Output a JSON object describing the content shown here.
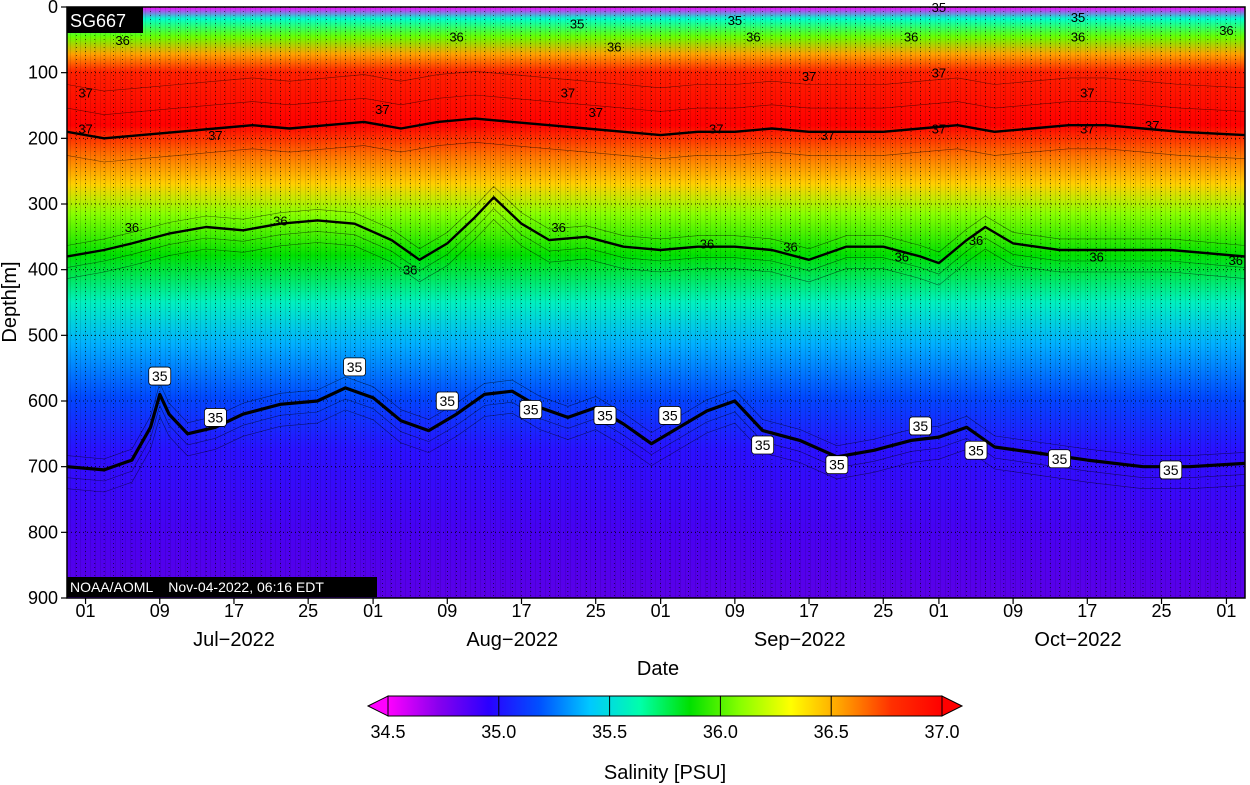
{
  "chart_data": {
    "type": "heatmap",
    "platform_label": "SG667",
    "credit_label": "NOAA/AOML    Nov-04-2022, 06:16 EDT",
    "ylabel": "Depth[m]",
    "xlabel": "Date",
    "colorbar_label": "Salinity [PSU]",
    "yticks": [
      "0",
      "100",
      "200",
      "300",
      "400",
      "500",
      "600",
      "700",
      "800",
      "900"
    ],
    "ylim": [
      0,
      900
    ],
    "xlim": [
      "2022-06-29",
      "2022-11-03"
    ],
    "xticks": [
      {
        "date": "2022-07-01",
        "label": "01"
      },
      {
        "date": "2022-07-09",
        "label": "09"
      },
      {
        "date": "2022-07-17",
        "label": "17"
      },
      {
        "date": "2022-07-25",
        "label": "25"
      },
      {
        "date": "2022-08-01",
        "label": "01"
      },
      {
        "date": "2022-08-09",
        "label": "09"
      },
      {
        "date": "2022-08-17",
        "label": "17"
      },
      {
        "date": "2022-08-25",
        "label": "25"
      },
      {
        "date": "2022-09-01",
        "label": "01"
      },
      {
        "date": "2022-09-09",
        "label": "09"
      },
      {
        "date": "2022-09-17",
        "label": "17"
      },
      {
        "date": "2022-09-25",
        "label": "25"
      },
      {
        "date": "2022-10-01",
        "label": "01"
      },
      {
        "date": "2022-10-09",
        "label": "09"
      },
      {
        "date": "2022-10-17",
        "label": "17"
      },
      {
        "date": "2022-10-25",
        "label": "25"
      },
      {
        "date": "2022-11-01",
        "label": "01"
      }
    ],
    "months": [
      {
        "date": "2022-07-17",
        "label": "Jul−2022"
      },
      {
        "date": "2022-08-16",
        "label": "Aug−2022"
      },
      {
        "date": "2022-09-16",
        "label": "Sep−2022"
      },
      {
        "date": "2022-10-16",
        "label": "Oct−2022"
      }
    ],
    "colorbar": {
      "range": [
        34.5,
        37.0
      ],
      "ticks": [
        "34.5",
        "35.0",
        "35.5",
        "36.0",
        "36.5",
        "37.0"
      ],
      "colors": [
        "#ff00ff",
        "#8800ee",
        "#2a00ff",
        "#0050ff",
        "#00c8ff",
        "#00ffaa",
        "#00e000",
        "#88ff00",
        "#ffff00",
        "#ffa000",
        "#ff3000",
        "#ff0000"
      ]
    },
    "contours": [
      {
        "level": 35,
        "label": "35",
        "points": [
          [
            "2022-06-29",
            700
          ],
          [
            "2022-07-03",
            705
          ],
          [
            "2022-07-06",
            690
          ],
          [
            "2022-07-08",
            640
          ],
          [
            "2022-07-09",
            590
          ],
          [
            "2022-07-10",
            620
          ],
          [
            "2022-07-12",
            650
          ],
          [
            "2022-07-15",
            640
          ],
          [
            "2022-07-18",
            620
          ],
          [
            "2022-07-22",
            605
          ],
          [
            "2022-07-26",
            600
          ],
          [
            "2022-07-29",
            580
          ],
          [
            "2022-08-01",
            595
          ],
          [
            "2022-08-04",
            630
          ],
          [
            "2022-08-07",
            645
          ],
          [
            "2022-08-10",
            620
          ],
          [
            "2022-08-13",
            590
          ],
          [
            "2022-08-16",
            585
          ],
          [
            "2022-08-19",
            610
          ],
          [
            "2022-08-22",
            625
          ],
          [
            "2022-08-25",
            610
          ],
          [
            "2022-08-28",
            635
          ],
          [
            "2022-08-31",
            665
          ],
          [
            "2022-09-03",
            640
          ],
          [
            "2022-09-06",
            615
          ],
          [
            "2022-09-09",
            600
          ],
          [
            "2022-09-12",
            645
          ],
          [
            "2022-09-16",
            660
          ],
          [
            "2022-09-20",
            685
          ],
          [
            "2022-09-24",
            675
          ],
          [
            "2022-09-28",
            660
          ],
          [
            "2022-10-01",
            655
          ],
          [
            "2022-10-04",
            640
          ],
          [
            "2022-10-07",
            670
          ],
          [
            "2022-10-12",
            680
          ],
          [
            "2022-10-17",
            690
          ],
          [
            "2022-10-23",
            700
          ],
          [
            "2022-10-28",
            700
          ],
          [
            "2022-11-03",
            695
          ]
        ]
      },
      {
        "level": 36,
        "label": "36",
        "points": [
          [
            "2022-06-29",
            380
          ],
          [
            "2022-07-03",
            370
          ],
          [
            "2022-07-06",
            360
          ],
          [
            "2022-07-10",
            345
          ],
          [
            "2022-07-14",
            335
          ],
          [
            "2022-07-18",
            340
          ],
          [
            "2022-07-22",
            330
          ],
          [
            "2022-07-26",
            325
          ],
          [
            "2022-07-30",
            330
          ],
          [
            "2022-08-03",
            355
          ],
          [
            "2022-08-06",
            385
          ],
          [
            "2022-08-09",
            360
          ],
          [
            "2022-08-12",
            320
          ],
          [
            "2022-08-14",
            290
          ],
          [
            "2022-08-17",
            330
          ],
          [
            "2022-08-20",
            355
          ],
          [
            "2022-08-24",
            350
          ],
          [
            "2022-08-28",
            365
          ],
          [
            "2022-09-01",
            370
          ],
          [
            "2022-09-05",
            365
          ],
          [
            "2022-09-09",
            365
          ],
          [
            "2022-09-13",
            370
          ],
          [
            "2022-09-17",
            385
          ],
          [
            "2022-09-21",
            365
          ],
          [
            "2022-09-25",
            365
          ],
          [
            "2022-09-29",
            380
          ],
          [
            "2022-10-01",
            390
          ],
          [
            "2022-10-04",
            355
          ],
          [
            "2022-10-06",
            335
          ],
          [
            "2022-10-09",
            360
          ],
          [
            "2022-10-14",
            370
          ],
          [
            "2022-10-20",
            370
          ],
          [
            "2022-10-26",
            370
          ],
          [
            "2022-11-03",
            380
          ]
        ]
      },
      {
        "level": 37,
        "label": "37",
        "points": [
          [
            "2022-06-29",
            190
          ],
          [
            "2022-07-03",
            200
          ],
          [
            "2022-07-07",
            195
          ],
          [
            "2022-07-11",
            190
          ],
          [
            "2022-07-15",
            185
          ],
          [
            "2022-07-19",
            180
          ],
          [
            "2022-07-23",
            185
          ],
          [
            "2022-07-27",
            180
          ],
          [
            "2022-07-31",
            175
          ],
          [
            "2022-08-04",
            185
          ],
          [
            "2022-08-08",
            175
          ],
          [
            "2022-08-12",
            170
          ],
          [
            "2022-08-16",
            175
          ],
          [
            "2022-08-20",
            180
          ],
          [
            "2022-08-24",
            185
          ],
          [
            "2022-08-28",
            190
          ],
          [
            "2022-09-01",
            195
          ],
          [
            "2022-09-05",
            190
          ],
          [
            "2022-09-09",
            190
          ],
          [
            "2022-09-13",
            185
          ],
          [
            "2022-09-17",
            190
          ],
          [
            "2022-09-21",
            190
          ],
          [
            "2022-09-25",
            190
          ],
          [
            "2022-09-29",
            185
          ],
          [
            "2022-10-03",
            180
          ],
          [
            "2022-10-07",
            190
          ],
          [
            "2022-10-11",
            185
          ],
          [
            "2022-10-15",
            180
          ],
          [
            "2022-10-19",
            180
          ],
          [
            "2022-10-23",
            185
          ],
          [
            "2022-10-27",
            190
          ],
          [
            "2022-11-03",
            195
          ]
        ]
      }
    ],
    "contour_labels": [
      {
        "level": "36",
        "date": "2022-07-05",
        "depth": 50
      },
      {
        "level": "36",
        "date": "2022-08-10",
        "depth": 45
      },
      {
        "level": "36",
        "date": "2022-08-27",
        "depth": 60
      },
      {
        "level": "36",
        "date": "2022-09-11",
        "depth": 45
      },
      {
        "level": "36",
        "date": "2022-09-28",
        "depth": 45
      },
      {
        "level": "36",
        "date": "2022-10-16",
        "depth": 45
      },
      {
        "level": "36",
        "date": "2022-11-01",
        "depth": 35
      },
      {
        "level": "37",
        "date": "2022-07-01",
        "depth": 130
      },
      {
        "level": "37",
        "date": "2022-07-01",
        "depth": 185
      },
      {
        "level": "37",
        "date": "2022-07-15",
        "depth": 195
      },
      {
        "level": "37",
        "date": "2022-08-02",
        "depth": 155
      },
      {
        "level": "37",
        "date": "2022-08-22",
        "depth": 130
      },
      {
        "level": "37",
        "date": "2022-08-25",
        "depth": 160
      },
      {
        "level": "37",
        "date": "2022-09-07",
        "depth": 185
      },
      {
        "level": "37",
        "date": "2022-09-17",
        "depth": 105
      },
      {
        "level": "37",
        "date": "2022-09-19",
        "depth": 195
      },
      {
        "level": "37",
        "date": "2022-10-01",
        "depth": 100
      },
      {
        "level": "37",
        "date": "2022-10-01",
        "depth": 185
      },
      {
        "level": "37",
        "date": "2022-10-17",
        "depth": 185
      },
      {
        "level": "37",
        "date": "2022-10-17",
        "depth": 130
      },
      {
        "level": "37",
        "date": "2022-10-24",
        "depth": 180
      },
      {
        "level": "36",
        "date": "2022-07-06",
        "depth": 335
      },
      {
        "level": "36",
        "date": "2022-07-22",
        "depth": 325
      },
      {
        "level": "36",
        "date": "2022-08-05",
        "depth": 400
      },
      {
        "level": "36",
        "date": "2022-08-21",
        "depth": 335
      },
      {
        "level": "36",
        "date": "2022-09-06",
        "depth": 360
      },
      {
        "level": "36",
        "date": "2022-09-15",
        "depth": 365
      },
      {
        "level": "36",
        "date": "2022-09-27",
        "depth": 380
      },
      {
        "level": "36",
        "date": "2022-10-05",
        "depth": 355
      },
      {
        "level": "36",
        "date": "2022-10-18",
        "depth": 380
      },
      {
        "level": "36",
        "date": "2022-11-02",
        "depth": 385
      },
      {
        "level": "35",
        "date": "2022-08-23",
        "depth": 25
      },
      {
        "level": "35",
        "date": "2022-09-09",
        "depth": 20
      },
      {
        "level": "35",
        "date": "2022-10-01",
        "depth": 0
      },
      {
        "level": "35",
        "date": "2022-10-16",
        "depth": 15
      }
    ],
    "boxed_labels": [
      {
        "level": "35",
        "date": "2022-07-09",
        "depth": 562
      },
      {
        "level": "35",
        "date": "2022-07-15",
        "depth": 625
      },
      {
        "level": "35",
        "date": "2022-07-30",
        "depth": 548
      },
      {
        "level": "35",
        "date": "2022-08-09",
        "depth": 600
      },
      {
        "level": "35",
        "date": "2022-08-18",
        "depth": 613
      },
      {
        "level": "35",
        "date": "2022-08-26",
        "depth": 622
      },
      {
        "level": "35",
        "date": "2022-09-02",
        "depth": 622
      },
      {
        "level": "35",
        "date": "2022-09-12",
        "depth": 667
      },
      {
        "level": "35",
        "date": "2022-09-20",
        "depth": 697
      },
      {
        "level": "35",
        "date": "2022-09-29",
        "depth": 638
      },
      {
        "level": "35",
        "date": "2022-10-05",
        "depth": 675
      },
      {
        "level": "35",
        "date": "2022-10-14",
        "depth": 688
      },
      {
        "level": "35",
        "date": "2022-10-26",
        "depth": 705
      }
    ]
  }
}
